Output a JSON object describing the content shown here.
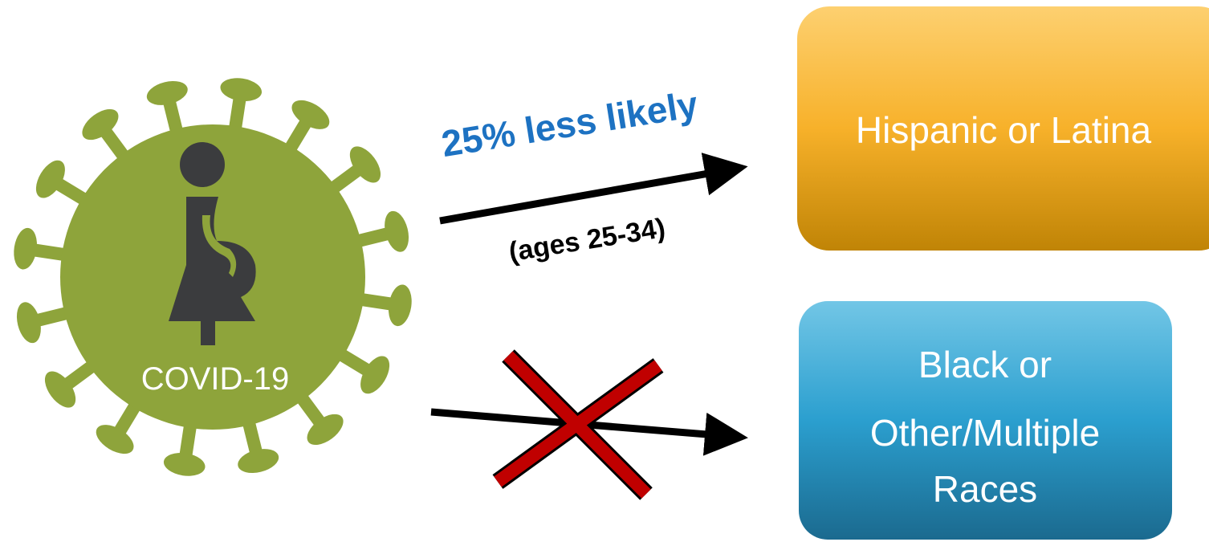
{
  "virus": {
    "label": "COVID-19"
  },
  "edges": [
    {
      "label": "25% less likely",
      "sublabel": "(ages 25-34)"
    }
  ],
  "nodes": [
    {
      "label": "Hispanic or Latina"
    },
    {
      "lines": [
        "Black or",
        "Other/Multiple",
        "Races"
      ]
    }
  ]
}
